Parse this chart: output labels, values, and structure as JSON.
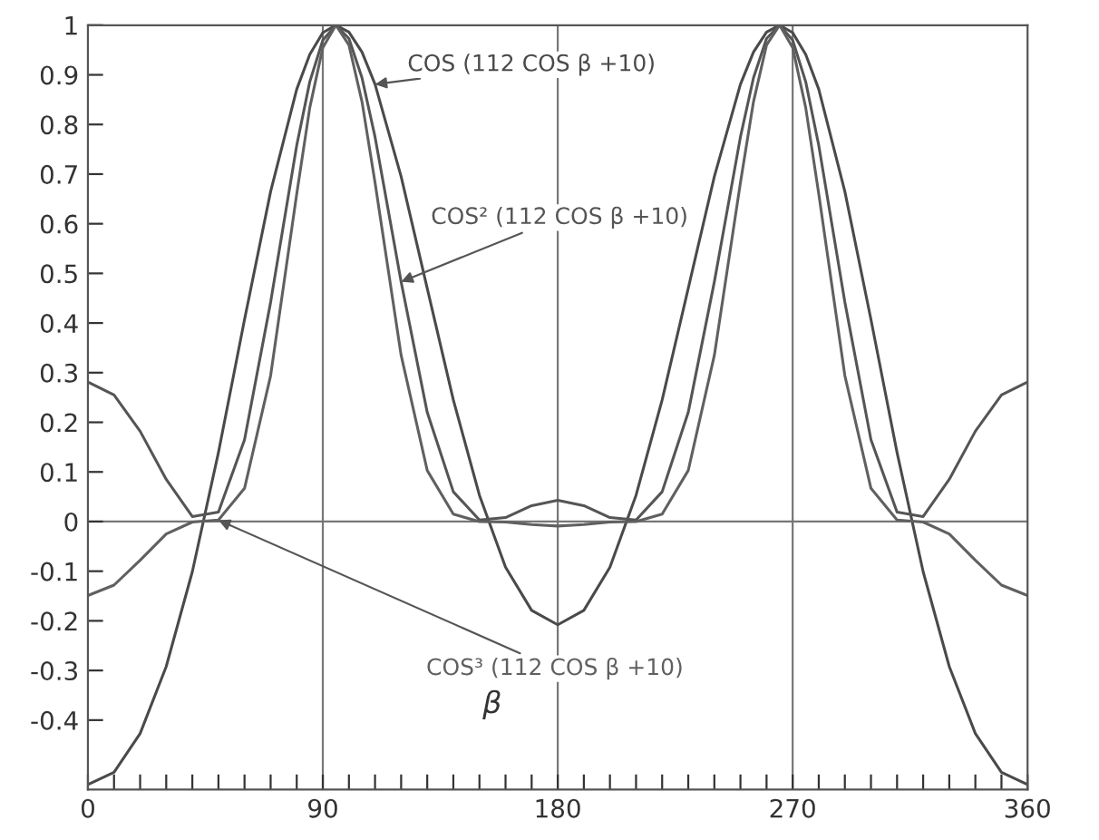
{
  "chart_data": {
    "type": "line",
    "x": [
      0,
      10,
      20,
      30,
      40,
      50,
      60,
      70,
      80,
      85,
      90,
      95,
      100,
      105,
      110,
      120,
      130,
      140,
      150,
      160,
      170,
      180,
      190,
      200,
      210,
      220,
      230,
      240,
      250,
      255,
      260,
      265,
      270,
      275,
      280,
      290,
      300,
      310,
      320,
      330,
      340,
      350,
      360
    ],
    "series": [
      {
        "name": "COS (112 COS β +10)",
        "color": "#4a4a4a",
        "values": [
          -0.53,
          -0.505,
          -0.427,
          -0.292,
          -0.101,
          0.139,
          0.407,
          0.665,
          0.871,
          0.941,
          0.985,
          1.0,
          0.986,
          0.946,
          0.881,
          0.695,
          0.47,
          0.245,
          0.053,
          -0.092,
          -0.179,
          -0.208,
          -0.179,
          -0.092,
          0.053,
          0.245,
          0.47,
          0.695,
          0.881,
          0.946,
          0.986,
          1.0,
          0.985,
          0.941,
          0.871,
          0.665,
          0.407,
          0.139,
          -0.101,
          -0.292,
          -0.427,
          -0.505,
          -0.53
        ]
      },
      {
        "name": "COS² (112 COS β +10)",
        "color": "#555555",
        "values": [
          0.281,
          0.255,
          0.182,
          0.085,
          0.01,
          0.019,
          0.165,
          0.442,
          0.758,
          0.886,
          0.97,
          1.0,
          0.973,
          0.894,
          0.775,
          0.483,
          0.22,
          0.06,
          0.003,
          0.008,
          0.032,
          0.043,
          0.032,
          0.008,
          0.003,
          0.06,
          0.22,
          0.483,
          0.775,
          0.894,
          0.973,
          1.0,
          0.97,
          0.886,
          0.758,
          0.442,
          0.165,
          0.019,
          0.01,
          0.085,
          0.182,
          0.255,
          0.281
        ]
      },
      {
        "name": "COS³ (112 COS β +10)",
        "color": "#606060",
        "values": [
          -0.149,
          -0.128,
          -0.078,
          -0.025,
          -0.001,
          0.003,
          0.067,
          0.294,
          0.66,
          0.834,
          0.955,
          1.0,
          0.96,
          0.846,
          0.683,
          0.335,
          0.103,
          0.015,
          0.0,
          -0.001,
          -0.006,
          -0.009,
          -0.006,
          -0.001,
          0.0,
          0.015,
          0.103,
          0.335,
          0.683,
          0.846,
          0.96,
          1.0,
          0.955,
          0.834,
          0.66,
          0.294,
          0.067,
          0.003,
          -0.001,
          -0.025,
          -0.078,
          -0.128,
          -0.149
        ]
      }
    ],
    "xlim": [
      0,
      360
    ],
    "xticks": [
      0,
      {
        "value": 10,
        "label": null
      },
      {
        "value": 20,
        "label": null
      },
      {
        "value": 30,
        "label": null
      },
      {
        "value": 40,
        "label": null
      },
      {
        "value": 50,
        "label": null
      },
      {
        "value": 60,
        "label": null
      },
      {
        "value": 70,
        "label": null
      },
      {
        "value": 80,
        "label": null
      },
      90,
      {
        "value": 100,
        "label": null
      },
      {
        "value": 110,
        "label": null
      },
      {
        "value": 120,
        "label": null
      },
      {
        "value": 130,
        "label": null
      },
      {
        "value": 140,
        "label": null
      },
      {
        "value": 150,
        "label": null
      },
      {
        "value": 160,
        "label": null
      },
      {
        "value": 170,
        "label": null
      },
      180,
      {
        "value": 190,
        "label": null
      },
      {
        "value": 200,
        "label": null
      },
      {
        "value": 210,
        "label": null
      },
      {
        "value": 220,
        "label": null
      },
      {
        "value": 230,
        "label": null
      },
      {
        "value": 240,
        "label": null
      },
      {
        "value": 250,
        "label": null
      },
      {
        "value": 260,
        "label": null
      },
      270,
      {
        "value": 280,
        "label": null
      },
      {
        "value": 290,
        "label": null
      },
      {
        "value": 300,
        "label": null
      },
      {
        "value": 310,
        "label": null
      },
      {
        "value": 320,
        "label": null
      },
      {
        "value": 330,
        "label": null
      },
      {
        "value": 340,
        "label": null
      },
      {
        "value": 350,
        "label": null
      },
      360
    ],
    "ylim": [
      -0.54,
      1
    ],
    "yticks": [
      -0.4,
      -0.3,
      -0.2,
      -0.1,
      0,
      0.1,
      0.2,
      0.3,
      0.4,
      0.5,
      0.6,
      0.7,
      0.8,
      0.9,
      1
    ],
    "ref_lines": [
      {
        "axis": "y",
        "value": 0,
        "color": "#777777"
      },
      {
        "axis": "x",
        "value": 90,
        "color": "#777777"
      },
      {
        "axis": "x",
        "value": 180,
        "color": "#777777"
      },
      {
        "axis": "x",
        "value": 270,
        "color": "#777777"
      }
    ],
    "annotations": [
      "β"
    ],
    "line_style": "solid",
    "marker": "none",
    "grid": false,
    "legend": false
  }
}
